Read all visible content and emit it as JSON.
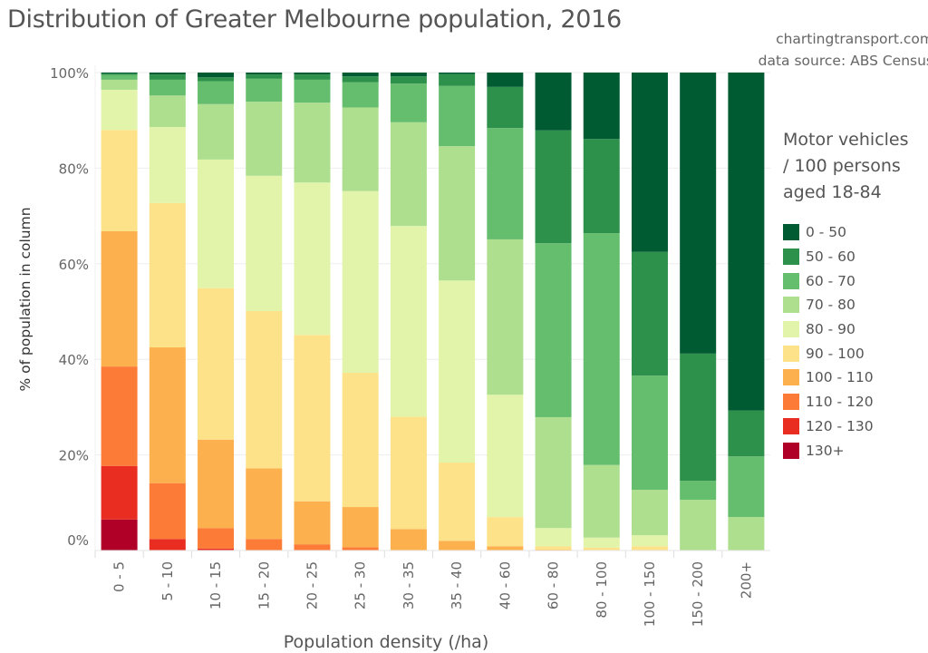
{
  "title": "Distribution of Greater Melbourne population, 2016",
  "source_lines": [
    "chartingtransport.com",
    "data source: ABS Census"
  ],
  "chart_data": {
    "type": "bar",
    "stacked": true,
    "normalized": true,
    "title": "Distribution of Greater Melbourne population, 2016",
    "xlabel": "Population density (/ha)",
    "ylabel": "% of population in column",
    "ylim": [
      0,
      100
    ],
    "yticks": [
      "0%",
      "20%",
      "40%",
      "60%",
      "80%",
      "100%"
    ],
    "grid": true,
    "legend_title": "Motor vehicles\n/ 100 persons\naged 18-84",
    "legend_position": "right",
    "categories": [
      "0 - 5",
      "5 - 10",
      "10 - 15",
      "15 - 20",
      "20 - 25",
      "25 - 30",
      "30 - 35",
      "35 - 40",
      "40 - 60",
      "60 - 80",
      "80 - 100",
      "100 - 150",
      "150 - 200",
      "200+"
    ],
    "series": [
      {
        "name": "0 - 50",
        "color": "#005a32",
        "values": [
          0.2,
          0.4,
          1.0,
          0.4,
          0.4,
          0.8,
          0.8,
          0.3,
          3.0,
          12.1,
          13.9,
          37.5,
          58.8,
          70.7
        ]
      },
      {
        "name": "50 - 60",
        "color": "#2e914b",
        "values": [
          0.3,
          1.1,
          0.8,
          0.9,
          1.1,
          1.2,
          1.5,
          2.5,
          8.6,
          23.6,
          19.7,
          25.9,
          26.6,
          9.6
        ]
      },
      {
        "name": "60 - 70",
        "color": "#65bd6e",
        "values": [
          1.0,
          3.3,
          4.8,
          4.8,
          4.8,
          5.3,
          8.1,
          12.6,
          23.3,
          36.4,
          48.5,
          23.9,
          4.0,
          12.7
        ]
      },
      {
        "name": "70 - 80",
        "color": "#aedf8f",
        "values": [
          2.1,
          6.6,
          11.6,
          15.5,
          16.7,
          17.5,
          21.7,
          28.1,
          32.5,
          23.2,
          15.2,
          9.5,
          10.6,
          7.0
        ]
      },
      {
        "name": "80 - 90",
        "color": "#e2f4a9",
        "values": [
          8.4,
          15.9,
          26.9,
          28.3,
          31.9,
          38.0,
          39.9,
          38.1,
          25.6,
          3.8,
          2.1,
          2.3,
          0,
          0
        ]
      },
      {
        "name": "90 - 100",
        "color": "#fde289",
        "values": [
          21.2,
          30.2,
          31.7,
          32.9,
          34.8,
          28.1,
          23.5,
          16.4,
          6.1,
          0.7,
          0.6,
          0.9,
          0,
          0
        ]
      },
      {
        "name": "100 - 110",
        "color": "#fdb14e",
        "values": [
          28.3,
          28.4,
          18.5,
          14.8,
          9.0,
          8.4,
          4.5,
          2.0,
          0.9,
          0.2,
          0,
          0,
          0,
          0
        ]
      },
      {
        "name": "110 - 120",
        "color": "#fc7c37",
        "values": [
          20.8,
          11.7,
          4.3,
          2.4,
          1.3,
          0.7,
          0,
          0,
          0,
          0,
          0,
          0,
          0,
          0
        ]
      },
      {
        "name": "120 - 130",
        "color": "#ea2d21",
        "values": [
          11.2,
          2.3,
          0.3,
          0,
          0,
          0,
          0,
          0,
          0,
          0,
          0,
          0,
          0,
          0
        ]
      },
      {
        "name": "130+",
        "color": "#b00027",
        "values": [
          6.5,
          0.1,
          0.1,
          0,
          0,
          0,
          0,
          0,
          0,
          0,
          0,
          0,
          0,
          0
        ]
      }
    ]
  }
}
